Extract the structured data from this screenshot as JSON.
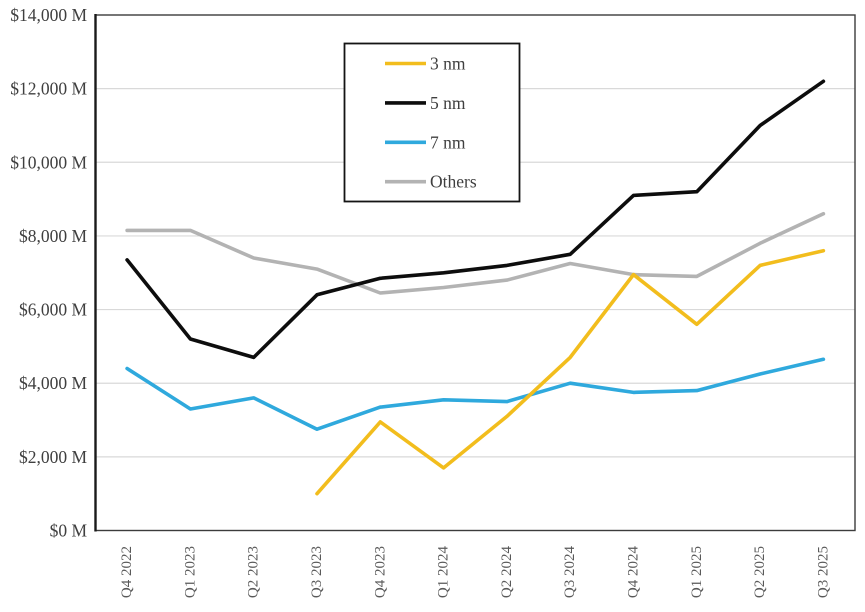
{
  "chart_data": {
    "type": "line",
    "title": "",
    "categories": [
      "Q4 2022",
      "Q1 2023",
      "Q2 2023",
      "Q3 2023",
      "Q4 2023",
      "Q1 2024",
      "Q2 2024",
      "Q3 2024",
      "Q4 2024",
      "Q1 2025",
      "Q2 2025",
      "Q3 2025"
    ],
    "series": [
      {
        "name": "3 nm",
        "color": "#F2BD1D",
        "values": [
          null,
          null,
          null,
          1000,
          2950,
          1700,
          3100,
          4700,
          6950,
          5600,
          7200,
          7600
        ]
      },
      {
        "name": "5 nm",
        "color": "#0D0D0D",
        "values": [
          7350,
          5200,
          4700,
          6400,
          6850,
          7000,
          7200,
          7500,
          9100,
          9200,
          11000,
          12200
        ]
      },
      {
        "name": "7 nm",
        "color": "#2FA9DD",
        "values": [
          4400,
          3300,
          3600,
          2750,
          3350,
          3550,
          3500,
          4000,
          3750,
          3800,
          4250,
          4650
        ]
      },
      {
        "name": "Others",
        "color": "#B3B3B3",
        "values": [
          8150,
          8150,
          7400,
          7100,
          6450,
          6600,
          6800,
          7250,
          6950,
          6900,
          7800,
          8600
        ]
      }
    ],
    "y_axis": {
      "min": 0,
      "max": 14000,
      "step": 2000,
      "tick_labels": [
        "$0 M",
        "$2,000 M",
        "$4,000 M",
        "$6,000 M",
        "$8,000 M",
        "$10,000 M",
        "$12,000 M",
        "$14,000 M"
      ]
    },
    "x_axis": {
      "label_rotation_deg": -90
    },
    "legend": {
      "position": "top-center-inside",
      "entries": [
        "3 nm",
        "5 nm",
        "7 nm",
        "Others"
      ]
    },
    "grid": true
  },
  "colors": {
    "background": "#FFFFFF",
    "gridline": "#D9D9D9",
    "axis_frame": "#3C3C3C",
    "axis_line": "#1A1A1A",
    "y_tick_text": "#3F3F3F",
    "x_tick_text": "#595959",
    "legend_border": "#141414",
    "legend_text": "#3F3F3F"
  }
}
